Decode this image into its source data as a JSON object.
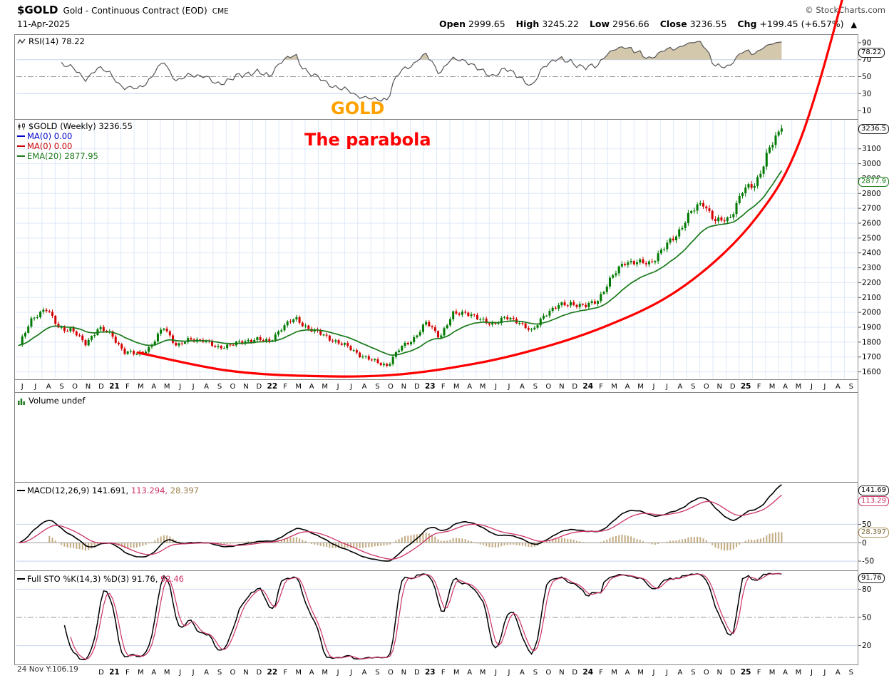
{
  "header": {
    "symbol": "$GOLD",
    "description": "Gold - Continuous Contract (EOD)",
    "exchange": "CME",
    "copyright": "© StockCharts.com",
    "date": "11-Apr-2025",
    "quote": [
      {
        "label": "Open",
        "value": "2999.65"
      },
      {
        "label": "High",
        "value": "3245.22"
      },
      {
        "label": "Low",
        "value": "2956.66"
      },
      {
        "label": "Close",
        "value": "3236.55"
      },
      {
        "label": "Chg",
        "value": "+199.45 (+6.57%)"
      }
    ],
    "arrow": "▲"
  },
  "panels": {
    "rsi": {
      "legend": "RSI(14) 78.22"
    },
    "price": {
      "symbol_line": "$GOLD (Weekly) 3236.55",
      "ma1": "MA(0) 0.00",
      "ma2": "MA(0) 0.00",
      "ema": "EMA(20) 2877.95"
    },
    "volume": {
      "legend": "Volume undef"
    },
    "macd": {
      "name": "MACD(12,26,9)",
      "v1": "141.691,",
      "v2": "113.294,",
      "v3": "28.397"
    },
    "sto": {
      "name": "Full STO %K(14,3) %D(3)",
      "v1": "91.76,",
      "v2": "92.46"
    }
  },
  "value_boxes": {
    "rsi": "78.22",
    "price": "3236.5",
    "ema": "2877.9",
    "macd1": "141.69",
    "macd2": "113.29",
    "macd3": "28.397",
    "sto": "91.76"
  },
  "annotations": {
    "gold": "GOLD",
    "parabola": "The parabola",
    "bottom_left": "24 Nov Y:106.19"
  },
  "colors": {
    "candle_up": "#007a00",
    "candle_down": "#d40000",
    "ema": "#1a7a1a",
    "rsi_line": "#555555",
    "rsi_fill": "#cbbd9e",
    "macd_line": "#000000",
    "macd_signal": "#cc3366",
    "macd_hist": "#c2ab82",
    "sto_k": "#000000",
    "sto_d": "#cc3366",
    "parabola": "#ff0000",
    "grid": "#dfe9f7",
    "grid_strong": "#c4d4ec",
    "frame": "#848484"
  },
  "chart_data": {
    "type": "candlestick-multi-panel",
    "title": "$GOLD Gold - Continuous Contract (EOD) CME, Weekly",
    "x_axis": {
      "data_end_frac": 0.914,
      "ticks": [
        "J",
        "J",
        "A",
        "S",
        "O",
        "N",
        "D",
        "21",
        "F",
        "M",
        "A",
        "M",
        "J",
        "J",
        "A",
        "S",
        "O",
        "N",
        "D",
        "22",
        "F",
        "M",
        "A",
        "M",
        "J",
        "J",
        "A",
        "S",
        "O",
        "N",
        "D",
        "23",
        "F",
        "M",
        "A",
        "M",
        "J",
        "J",
        "A",
        "S",
        "O",
        "N",
        "D",
        "24",
        "F",
        "M",
        "A",
        "M",
        "J",
        "J",
        "A",
        "S",
        "O",
        "N",
        "D",
        "25",
        "F",
        "M",
        "A",
        "M",
        "J",
        "J",
        "A",
        "S"
      ]
    },
    "price": {
      "ylim": [
        1550,
        3300
      ],
      "yticks": [
        1600,
        1700,
        1800,
        1900,
        2000,
        2100,
        2200,
        2300,
        2400,
        2500,
        2600,
        2700,
        2800,
        2900,
        3000,
        3100
      ],
      "last_close": 3236.55,
      "ema20_last": 2877.95,
      "monthly_closes": [
        1780,
        1960,
        2030,
        1895,
        1885,
        1785,
        1895,
        1850,
        1735,
        1715,
        1770,
        1900,
        1775,
        1815,
        1818,
        1758,
        1785,
        1795,
        1828,
        1795,
        1905,
        1955,
        1895,
        1850,
        1810,
        1765,
        1712,
        1668,
        1645,
        1760,
        1825,
        1930,
        1838,
        1985,
        2005,
        1948,
        1925,
        1960,
        1942,
        1865,
        1995,
        2040,
        2065,
        2035,
        2085,
        2220,
        2345,
        2330,
        2335,
        2425,
        2525,
        2660,
        2745,
        2605,
        2630,
        2810,
        2865,
        3085,
        3236.55
      ],
      "parabola": [
        [
          0.145,
          1730
        ],
        [
          0.25,
          1610
        ],
        [
          0.35,
          1572
        ],
        [
          0.45,
          1580
        ],
        [
          0.55,
          1660
        ],
        [
          0.63,
          1770
        ],
        [
          0.7,
          1905
        ],
        [
          0.77,
          2090
        ],
        [
          0.83,
          2340
        ],
        [
          0.88,
          2640
        ],
        [
          0.92,
          3000
        ],
        [
          0.955,
          3560
        ],
        [
          1.005,
          4600
        ]
      ]
    },
    "rsi": {
      "ylim": [
        0,
        100
      ],
      "yticks": [
        10,
        30,
        50,
        70,
        90
      ],
      "period": 14,
      "last": 78.22,
      "overbought": 70,
      "midline": 50,
      "oversold": 30
    },
    "macd": {
      "ylim": [
        -75,
        165
      ],
      "yticks": [
        -50,
        0,
        50
      ],
      "params": [
        12,
        26,
        9
      ],
      "last": [
        141.691,
        113.294,
        28.397
      ]
    },
    "sto": {
      "ylim": [
        0,
        100
      ],
      "yticks": [
        20,
        50,
        80
      ],
      "params": "%K(14,3) %D(3)",
      "last": [
        91.76,
        92.46
      ]
    },
    "volume": {
      "status": "undef"
    }
  }
}
